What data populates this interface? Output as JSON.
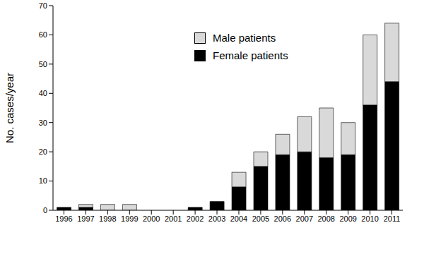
{
  "chart_data": {
    "type": "bar",
    "stacked": true,
    "y_label": "No. cases/year",
    "categories": [
      "1996",
      "1997",
      "1998",
      "1999",
      "2000",
      "2001",
      "2002",
      "2003",
      "2004",
      "2005",
      "2006",
      "2007",
      "2008",
      "2009",
      "2010",
      "2011"
    ],
    "series": [
      {
        "name": "Female patients",
        "color": "#000000",
        "values": [
          1,
          1,
          0,
          0,
          0,
          0,
          1,
          3,
          8,
          15,
          19,
          20,
          18,
          19,
          36,
          44
        ]
      },
      {
        "name": "Male patients",
        "color": "#d9d9d9",
        "values": [
          0,
          1,
          2,
          2,
          0,
          0,
          0,
          0,
          5,
          5,
          7,
          12,
          17,
          11,
          24,
          20
        ]
      }
    ],
    "ylim": [
      0,
      70
    ],
    "yticks": [
      0,
      10,
      20,
      30,
      40,
      50,
      60,
      70
    ],
    "grid": false,
    "legend": "upper center"
  }
}
